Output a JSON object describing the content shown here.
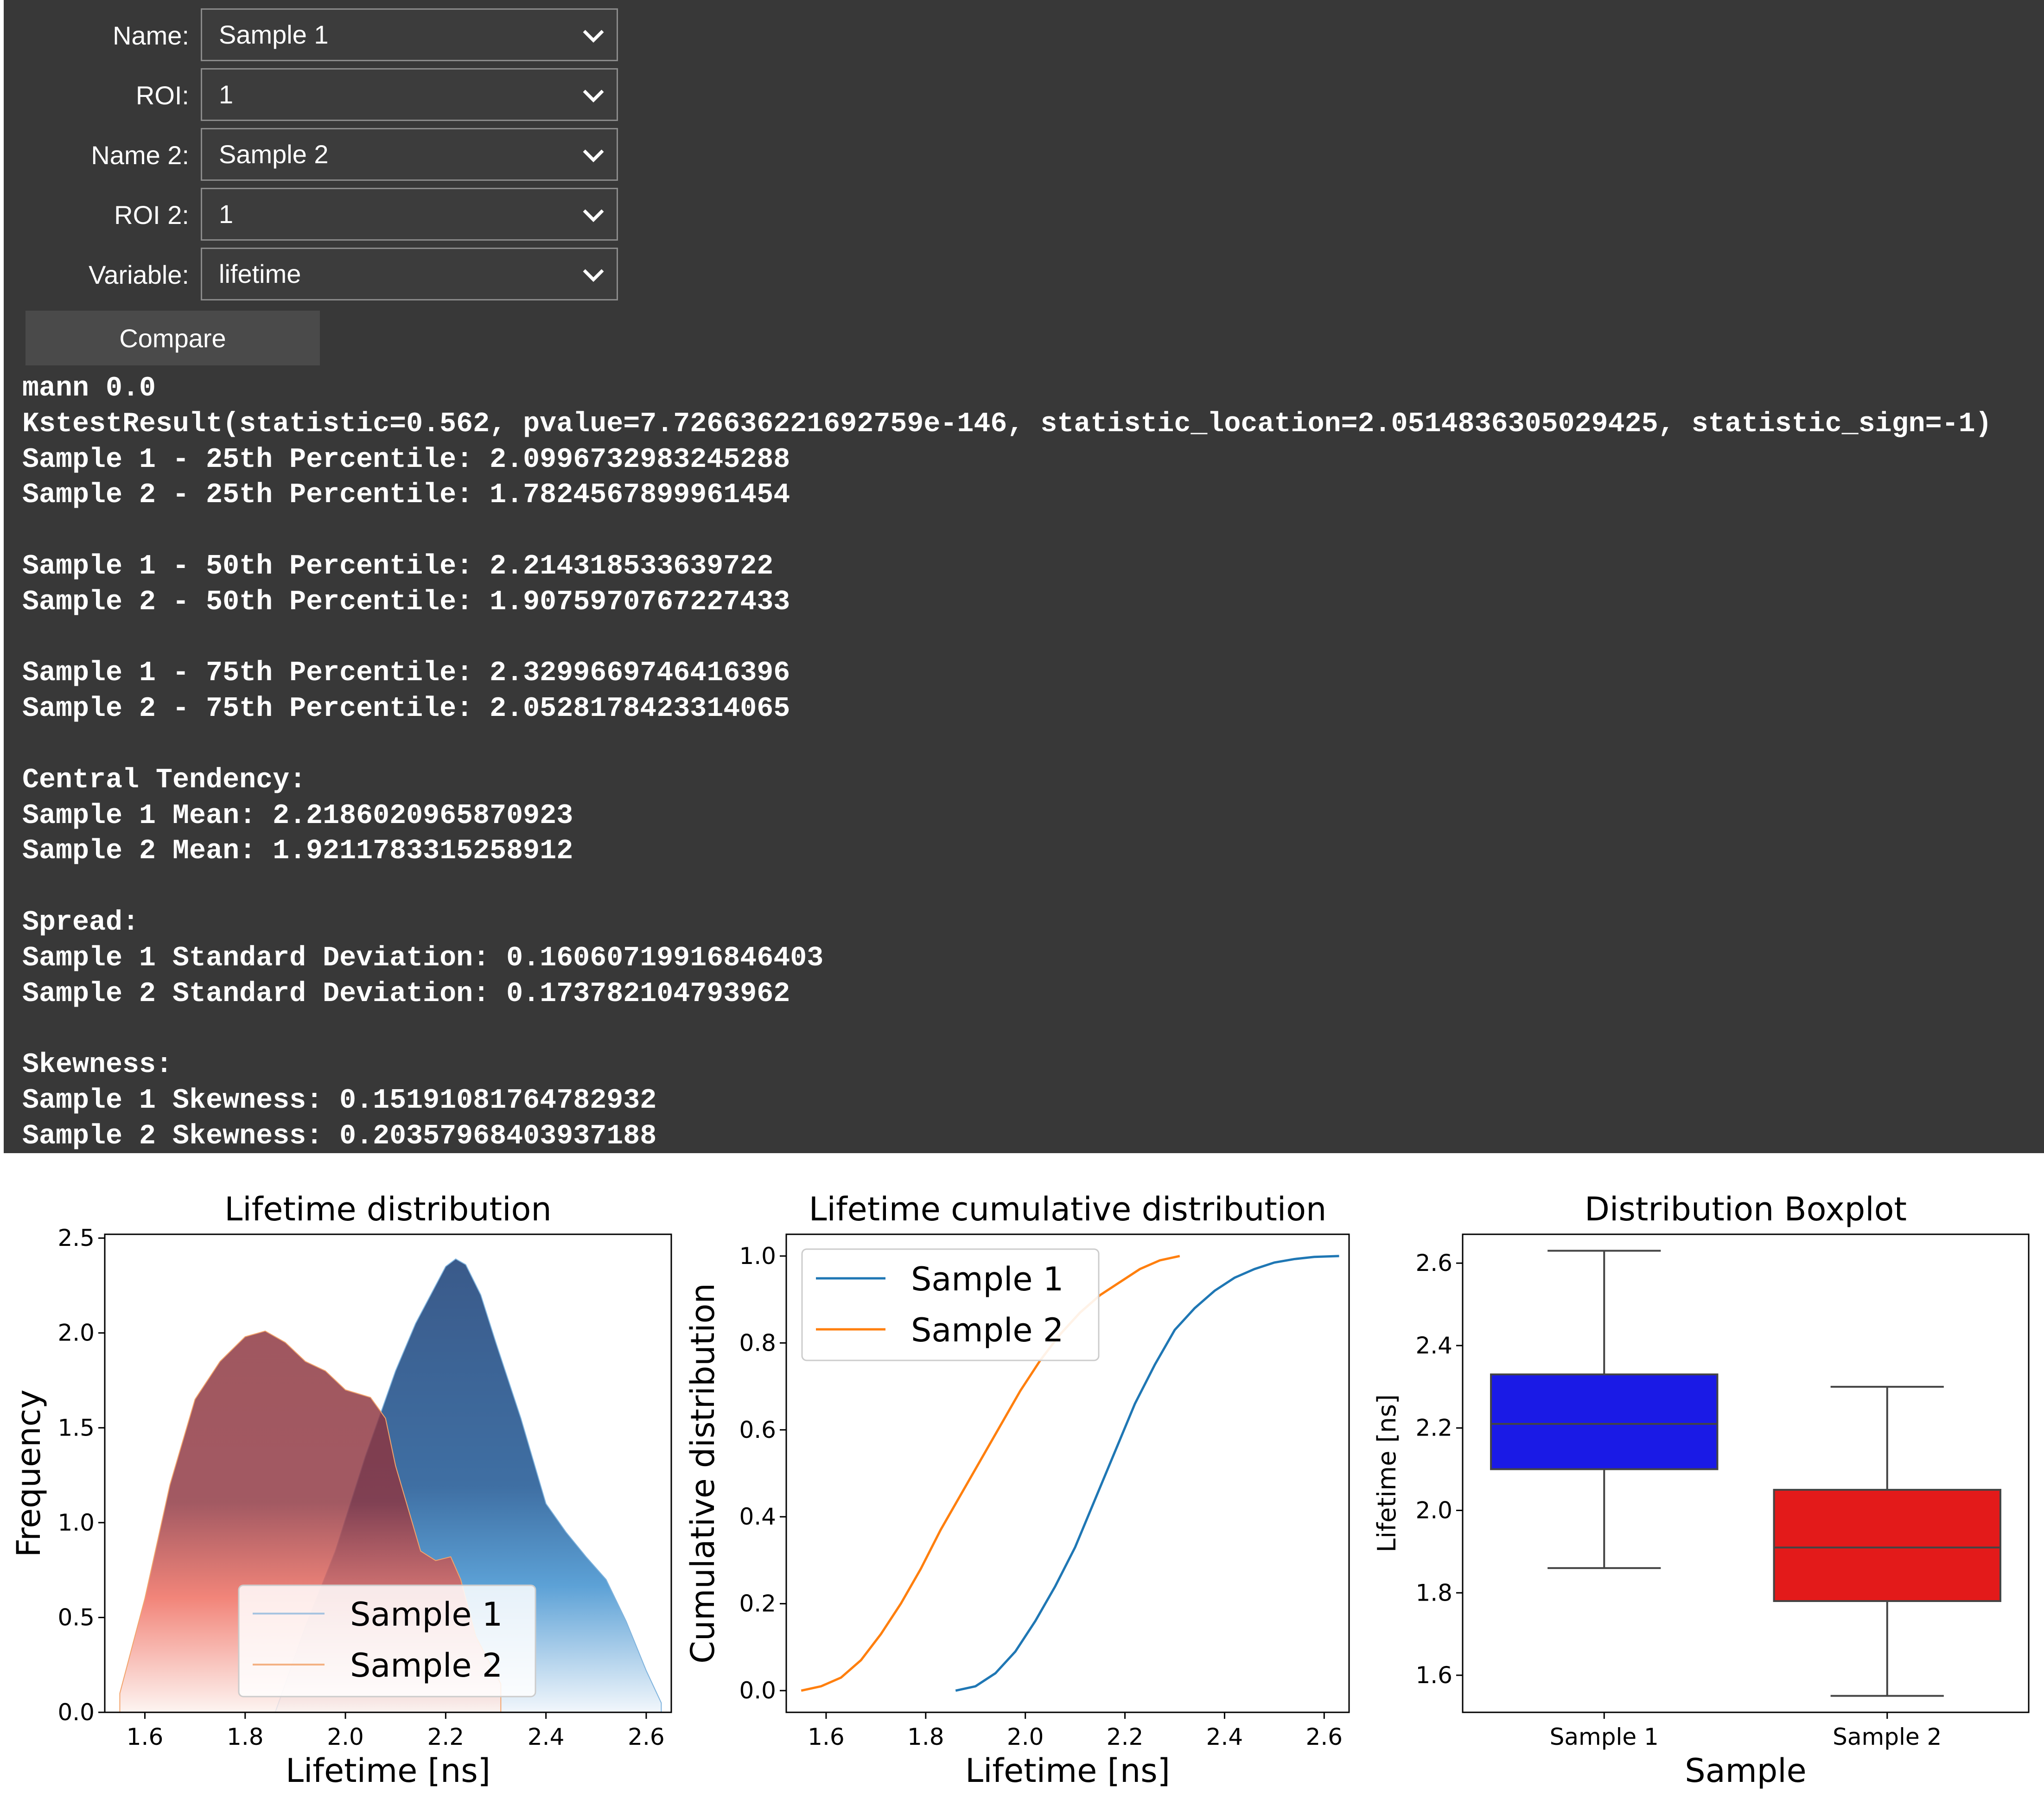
{
  "controls": [
    {
      "label": "Name:",
      "value": "Sample 1"
    },
    {
      "label": "ROI:",
      "value": "1"
    },
    {
      "label": "Name 2:",
      "value": "Sample 2"
    },
    {
      "label": "ROI 2:",
      "value": "1"
    },
    {
      "label": "Variable:",
      "value": "lifetime"
    }
  ],
  "compare_label": "Compare",
  "output_lines": [
    "mann 0.0",
    "KstestResult(statistic=0.562, pvalue=7.726636221692759e-146, statistic_location=2.0514836305029425, statistic_sign=-1)",
    "Sample 1 - 25th Percentile: 2.0996732983245288",
    "Sample 2 - 25th Percentile: 1.7824567899961454",
    "",
    "Sample 1 - 50th Percentile: 2.214318533639722",
    "Sample 2 - 50th Percentile: 1.9075970767227433",
    "",
    "Sample 1 - 75th Percentile: 2.3299669746416396",
    "Sample 2 - 75th Percentile: 2.0528178423314065",
    "",
    "Central Tendency:",
    "Sample 1 Mean: 2.2186020965870923",
    "Sample 2 Mean: 1.9211783315258912",
    "",
    "Spread:",
    "Sample 1 Standard Deviation: 0.16060719916846403",
    "Sample 2 Standard Deviation: 0.173782104793962",
    "",
    "Skewness:",
    "Sample 1 Skewness: 0.15191081764782932",
    "Sample 2 Skewness: 0.20357968403937188"
  ],
  "chart_data": [
    {
      "type": "area",
      "title": "Lifetime distribution",
      "xlabel": "Lifetime [ns]",
      "ylabel": "Frequency",
      "xlim": [
        1.52,
        2.65
      ],
      "ylim": [
        0,
        2.52
      ],
      "xticks": [
        "1.6",
        "1.8",
        "2.0",
        "2.2",
        "2.4",
        "2.6"
      ],
      "yticks": [
        "0.0",
        "0.5",
        "1.0",
        "1.5",
        "2.0",
        "2.5"
      ],
      "legend": "lower-center",
      "series": [
        {
          "name": "Sample 1",
          "color": "#1f4e8c",
          "fill_bottom": "#d6e6f4",
          "x": [
            1.86,
            1.92,
            1.98,
            2.04,
            2.1,
            2.14,
            2.18,
            2.2,
            2.22,
            2.24,
            2.27,
            2.3,
            2.35,
            2.4,
            2.44,
            2.48,
            2.52,
            2.56,
            2.6,
            2.63
          ],
          "y": [
            0.0,
            0.45,
            0.85,
            1.35,
            1.8,
            2.05,
            2.25,
            2.35,
            2.39,
            2.36,
            2.2,
            1.95,
            1.55,
            1.1,
            0.95,
            0.82,
            0.7,
            0.48,
            0.22,
            0.05
          ]
        },
        {
          "name": "Sample 2",
          "color": "#8b2c3a",
          "fill_bottom": "#fbe3da",
          "x": [
            1.55,
            1.6,
            1.65,
            1.7,
            1.75,
            1.8,
            1.84,
            1.88,
            1.92,
            1.96,
            2.0,
            2.05,
            2.08,
            2.1,
            2.15,
            2.18,
            2.21,
            2.23,
            2.26,
            2.31
          ],
          "y": [
            0.1,
            0.6,
            1.2,
            1.65,
            1.85,
            1.98,
            2.01,
            1.95,
            1.85,
            1.8,
            1.7,
            1.66,
            1.55,
            1.3,
            0.85,
            0.8,
            0.82,
            0.7,
            0.4,
            0.15
          ]
        }
      ]
    },
    {
      "type": "line",
      "title": "Lifetime cumulative distribution",
      "xlabel": "Lifetime [ns]",
      "ylabel": "Cumulative distribution",
      "xlim": [
        1.52,
        2.65
      ],
      "ylim": [
        -0.05,
        1.05
      ],
      "xticks": [
        "1.6",
        "1.8",
        "2.0",
        "2.2",
        "2.4",
        "2.6"
      ],
      "yticks": [
        "0.0",
        "0.2",
        "0.4",
        "0.6",
        "0.8",
        "1.0"
      ],
      "legend": "upper-left",
      "series": [
        {
          "name": "Sample 1",
          "color": "#1f77b4",
          "x": [
            1.86,
            1.9,
            1.94,
            1.98,
            2.02,
            2.06,
            2.1,
            2.14,
            2.18,
            2.22,
            2.26,
            2.3,
            2.34,
            2.38,
            2.42,
            2.46,
            2.5,
            2.54,
            2.58,
            2.63
          ],
          "y": [
            0.0,
            0.01,
            0.04,
            0.09,
            0.16,
            0.24,
            0.33,
            0.44,
            0.55,
            0.66,
            0.75,
            0.83,
            0.88,
            0.92,
            0.95,
            0.97,
            0.985,
            0.993,
            0.998,
            1.0
          ]
        },
        {
          "name": "Sample 2",
          "color": "#ff7f0e",
          "x": [
            1.55,
            1.59,
            1.63,
            1.67,
            1.71,
            1.75,
            1.79,
            1.83,
            1.87,
            1.91,
            1.95,
            1.99,
            2.03,
            2.07,
            2.11,
            2.15,
            2.19,
            2.23,
            2.27,
            2.31
          ],
          "y": [
            0.0,
            0.01,
            0.03,
            0.07,
            0.13,
            0.2,
            0.28,
            0.37,
            0.45,
            0.53,
            0.61,
            0.69,
            0.76,
            0.82,
            0.87,
            0.91,
            0.94,
            0.97,
            0.99,
            1.0
          ]
        }
      ]
    },
    {
      "type": "box",
      "title": "Distribution Boxplot",
      "xlabel": "Sample",
      "ylabel": "Lifetime [ns]",
      "ylim": [
        1.51,
        2.67
      ],
      "yticks": [
        "1.6",
        "1.8",
        "2.0",
        "2.2",
        "2.4",
        "2.6"
      ],
      "categories": [
        "Sample 1",
        "Sample 2"
      ],
      "boxes": [
        {
          "whisker_low": 1.86,
          "q1": 2.1,
          "median": 2.21,
          "q3": 2.33,
          "whisker_high": 2.63,
          "color": "#1a1ae6"
        },
        {
          "whisker_low": 1.55,
          "q1": 1.78,
          "median": 1.91,
          "q3": 2.05,
          "whisker_high": 2.3,
          "color": "#e31a1a"
        }
      ]
    }
  ]
}
